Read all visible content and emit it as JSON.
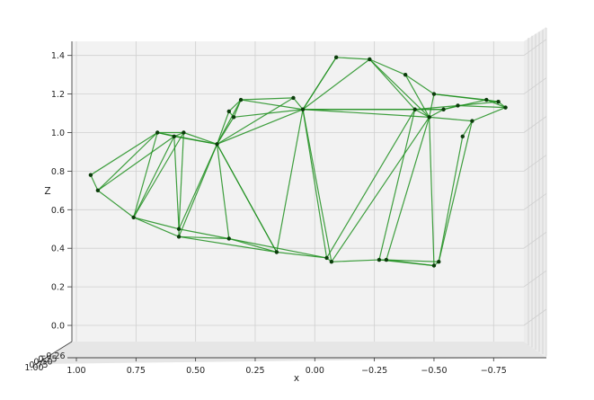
{
  "chart_data": {
    "type": "3d-wireframe",
    "title": "",
    "xlabel": "x",
    "zlabel": "Z",
    "x_ticks": [
      {
        "value": 1.0,
        "label": "1.00"
      },
      {
        "value": 0.75,
        "label": "0.75"
      },
      {
        "value": 0.5,
        "label": "0.50"
      },
      {
        "value": 0.25,
        "label": "0.25"
      },
      {
        "value": 0.0,
        "label": "0.00"
      },
      {
        "value": -0.25,
        "label": "−0.25"
      },
      {
        "value": -0.5,
        "label": "−0.50"
      },
      {
        "value": -0.75,
        "label": "−0.75"
      }
    ],
    "z_ticks": [
      {
        "value": 0.0,
        "label": "0.0"
      },
      {
        "value": 0.2,
        "label": "0.2"
      },
      {
        "value": 0.4,
        "label": "0.4"
      },
      {
        "value": 0.6,
        "label": "0.6"
      },
      {
        "value": 0.8,
        "label": "0.8"
      },
      {
        "value": 1.0,
        "label": "1.0"
      },
      {
        "value": 1.2,
        "label": "1.2"
      },
      {
        "value": 1.4,
        "label": "1.4"
      }
    ],
    "y_tick_labels_overlapping": [
      "1.00",
      "0.75",
      "0.50",
      "0.25",
      "−0.26"
    ],
    "xlim": [
      1.0,
      -0.85
    ],
    "zlim": [
      -0.1,
      1.47
    ],
    "line_color": "#1f8f1f",
    "point_color": "#0b3d0b",
    "pane_color": "#f2f2f2",
    "points": [
      [
        0.94,
        0.78
      ],
      [
        0.91,
        0.7
      ],
      [
        0.76,
        0.56
      ],
      [
        0.66,
        1.0
      ],
      [
        0.59,
        0.98
      ],
      [
        0.55,
        1.0
      ],
      [
        0.57,
        0.5
      ],
      [
        0.57,
        0.46
      ],
      [
        0.41,
        0.94
      ],
      [
        0.36,
        0.45
      ],
      [
        0.36,
        1.11
      ],
      [
        0.34,
        1.08
      ],
      [
        0.31,
        1.17
      ],
      [
        0.16,
        0.38
      ],
      [
        0.09,
        1.18
      ],
      [
        0.05,
        1.12
      ],
      [
        -0.05,
        0.35
      ],
      [
        -0.07,
        0.33
      ],
      [
        -0.09,
        1.39
      ],
      [
        -0.23,
        1.38
      ],
      [
        -0.27,
        0.34
      ],
      [
        -0.3,
        0.34
      ],
      [
        -0.38,
        1.3
      ],
      [
        -0.42,
        1.12
      ],
      [
        -0.48,
        1.08
      ],
      [
        -0.5,
        0.31
      ],
      [
        -0.5,
        1.2
      ],
      [
        -0.52,
        0.33
      ],
      [
        -0.54,
        1.12
      ],
      [
        -0.6,
        1.14
      ],
      [
        -0.62,
        0.98
      ],
      [
        -0.66,
        1.06
      ],
      [
        -0.72,
        1.17
      ],
      [
        -0.77,
        1.16
      ],
      [
        -0.8,
        1.13
      ]
    ],
    "edges": [
      [
        0,
        1
      ],
      [
        0,
        3
      ],
      [
        1,
        3
      ],
      [
        1,
        4
      ],
      [
        1,
        2
      ],
      [
        2,
        3
      ],
      [
        2,
        4
      ],
      [
        2,
        5
      ],
      [
        2,
        6
      ],
      [
        2,
        7
      ],
      [
        3,
        4
      ],
      [
        3,
        5
      ],
      [
        3,
        8
      ],
      [
        4,
        5
      ],
      [
        4,
        8
      ],
      [
        4,
        6
      ],
      [
        5,
        8
      ],
      [
        5,
        6
      ],
      [
        6,
        8
      ],
      [
        6,
        9
      ],
      [
        7,
        9
      ],
      [
        7,
        8
      ],
      [
        8,
        9
      ],
      [
        8,
        10
      ],
      [
        8,
        11
      ],
      [
        8,
        12
      ],
      [
        8,
        14
      ],
      [
        8,
        15
      ],
      [
        8,
        13
      ],
      [
        9,
        13
      ],
      [
        10,
        12
      ],
      [
        10,
        11
      ],
      [
        11,
        12
      ],
      [
        11,
        15
      ],
      [
        12,
        14
      ],
      [
        12,
        15
      ],
      [
        13,
        15
      ],
      [
        13,
        8
      ],
      [
        14,
        15
      ],
      [
        15,
        16
      ],
      [
        15,
        17
      ],
      [
        15,
        18
      ],
      [
        15,
        19
      ],
      [
        15,
        23
      ],
      [
        15,
        24
      ],
      [
        15,
        28
      ],
      [
        16,
        17
      ],
      [
        16,
        23
      ],
      [
        17,
        20
      ],
      [
        17,
        24
      ],
      [
        18,
        19
      ],
      [
        18,
        15
      ],
      [
        19,
        22
      ],
      [
        19,
        23
      ],
      [
        19,
        24
      ],
      [
        20,
        21
      ],
      [
        20,
        23
      ],
      [
        21,
        25
      ],
      [
        21,
        24
      ],
      [
        22,
        24
      ],
      [
        22,
        26
      ],
      [
        23,
        24
      ],
      [
        23,
        28
      ],
      [
        24,
        25
      ],
      [
        24,
        26
      ],
      [
        24,
        28
      ],
      [
        25,
        27
      ],
      [
        26,
        32
      ],
      [
        26,
        33
      ],
      [
        27,
        30
      ],
      [
        27,
        31
      ],
      [
        28,
        29
      ],
      [
        28,
        32
      ],
      [
        29,
        33
      ],
      [
        29,
        34
      ],
      [
        30,
        31
      ],
      [
        31,
        34
      ],
      [
        32,
        33
      ],
      [
        32,
        34
      ],
      [
        33,
        34
      ],
      [
        24,
        31
      ],
      [
        23,
        29
      ],
      [
        21,
        27
      ],
      [
        20,
        25
      ],
      [
        13,
        16
      ],
      [
        9,
        16
      ],
      [
        7,
        13
      ],
      [
        6,
        7
      ]
    ]
  }
}
